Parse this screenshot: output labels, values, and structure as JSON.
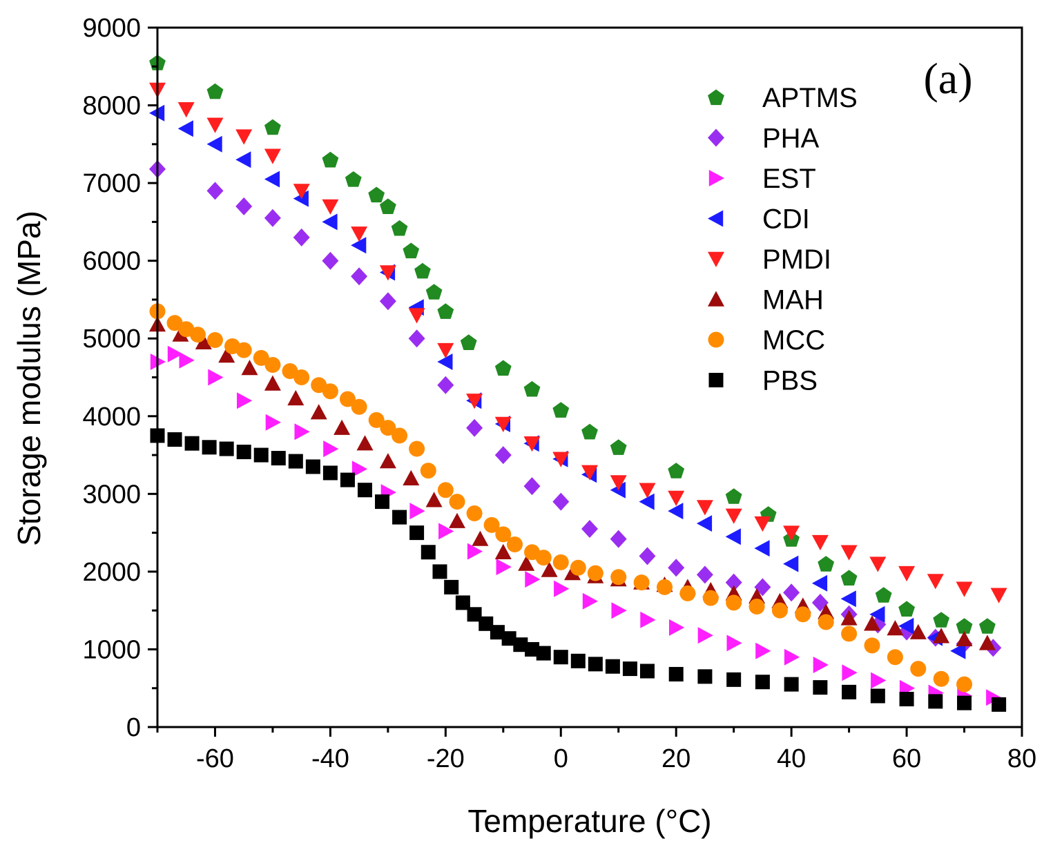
{
  "chart_data": {
    "type": "scatter",
    "panel_label": "(a)",
    "xlabel": "Temperature (°C)",
    "ylabel": "Storage modulus (MPa)",
    "xlim": [
      -70,
      80
    ],
    "ylim": [
      0,
      9000
    ],
    "xticks": [
      -60,
      -40,
      -20,
      0,
      20,
      40,
      60,
      80
    ],
    "yticks": [
      0,
      1000,
      2000,
      3000,
      4000,
      5000,
      6000,
      7000,
      8000,
      9000
    ],
    "xtick_labels": [
      "-60",
      "-40",
      "-20",
      "0",
      "20",
      "40",
      "60",
      "80"
    ],
    "ytick_labels": [
      "0",
      "1000",
      "2000",
      "3000",
      "4000",
      "5000",
      "6000",
      "7000",
      "8000",
      "9000"
    ],
    "legend_position": "top-right",
    "grid": false,
    "series": [
      {
        "name": "APTMS",
        "marker": "pentagon",
        "color": "#218a21",
        "x": [
          -70,
          -60,
          -50,
          -40,
          -36,
          -32,
          -30,
          -28,
          -26,
          -24,
          -22,
          -20,
          -16,
          -10,
          -5,
          0,
          5,
          10,
          20,
          30,
          36,
          40,
          46,
          50,
          56,
          60,
          66,
          70,
          74
        ],
        "y": [
          8550,
          8180,
          7720,
          7300,
          7050,
          6850,
          6700,
          6420,
          6130,
          5870,
          5600,
          5350,
          4950,
          4620,
          4350,
          4080,
          3800,
          3600,
          3300,
          2970,
          2740,
          2420,
          2100,
          1920,
          1700,
          1520,
          1380,
          1300,
          1300
        ]
      },
      {
        "name": "PHA",
        "marker": "diamond",
        "color": "#9a2ef0",
        "x": [
          -70,
          -60,
          -55,
          -50,
          -45,
          -40,
          -35,
          -30,
          -25,
          -20,
          -15,
          -10,
          -5,
          0,
          5,
          10,
          15,
          20,
          25,
          30,
          35,
          40,
          45,
          50,
          55,
          60,
          65,
          70,
          75
        ],
        "y": [
          7180,
          6900,
          6700,
          6550,
          6300,
          6000,
          5800,
          5480,
          5000,
          4400,
          3850,
          3500,
          3100,
          2900,
          2550,
          2420,
          2200,
          2050,
          1960,
          1860,
          1800,
          1730,
          1600,
          1450,
          1320,
          1230,
          1150,
          1070,
          1020
        ]
      },
      {
        "name": "EST",
        "marker": "triangle-right",
        "color": "#ff1fff",
        "x": [
          -70,
          -67,
          -65,
          -60,
          -55,
          -50,
          -45,
          -40,
          -35,
          -30,
          -25,
          -20,
          -15,
          -10,
          -5,
          0,
          5,
          10,
          15,
          20,
          25,
          30,
          35,
          40,
          45,
          50,
          55,
          60,
          65,
          70,
          75
        ],
        "y": [
          4700,
          4800,
          4720,
          4500,
          4200,
          3920,
          3800,
          3580,
          3320,
          3020,
          2780,
          2520,
          2260,
          2060,
          1900,
          1780,
          1620,
          1500,
          1380,
          1280,
          1180,
          1080,
          980,
          900,
          800,
          700,
          600,
          500,
          440,
          400,
          380
        ]
      },
      {
        "name": "CDI",
        "marker": "triangle-left",
        "color": "#1c1cff",
        "x": [
          -70,
          -65,
          -60,
          -55,
          -50,
          -45,
          -40,
          -35,
          -30,
          -25,
          -20,
          -15,
          -10,
          -5,
          0,
          5,
          10,
          15,
          20,
          25,
          30,
          35,
          40,
          45,
          50,
          55,
          60,
          65,
          69
        ],
        "y": [
          7900,
          7700,
          7500,
          7300,
          7050,
          6800,
          6500,
          6200,
          5850,
          5400,
          4700,
          4200,
          3900,
          3650,
          3450,
          3250,
          3050,
          2900,
          2780,
          2620,
          2450,
          2300,
          2100,
          1850,
          1650,
          1450,
          1300,
          1150,
          980
        ]
      },
      {
        "name": "PMDI",
        "marker": "triangle-down",
        "color": "#ff1f1f",
        "x": [
          -70,
          -65,
          -60,
          -55,
          -50,
          -45,
          -40,
          -35,
          -30,
          -25,
          -20,
          -15,
          -10,
          -5,
          0,
          5,
          10,
          15,
          20,
          25,
          30,
          35,
          40,
          45,
          50,
          55,
          60,
          65,
          70,
          76
        ],
        "y": [
          8200,
          7950,
          7750,
          7600,
          7350,
          6900,
          6700,
          6350,
          5850,
          5300,
          4850,
          4200,
          3900,
          3650,
          3450,
          3280,
          3150,
          3050,
          2950,
          2830,
          2720,
          2620,
          2500,
          2380,
          2250,
          2100,
          1980,
          1880,
          1780,
          1700
        ]
      },
      {
        "name": "MAH",
        "marker": "triangle-up",
        "color": "#9c0c0c",
        "x": [
          -70,
          -66,
          -62,
          -58,
          -54,
          -50,
          -46,
          -42,
          -38,
          -34,
          -30,
          -26,
          -22,
          -18,
          -14,
          -10,
          -6,
          -2,
          2,
          6,
          10,
          14,
          18,
          22,
          26,
          30,
          34,
          38,
          42,
          46,
          50,
          54,
          58,
          62,
          66,
          70,
          74
        ],
        "y": [
          5180,
          5050,
          4950,
          4780,
          4620,
          4420,
          4230,
          4050,
          3850,
          3650,
          3420,
          3200,
          2920,
          2650,
          2420,
          2250,
          2100,
          2020,
          1980,
          1940,
          1900,
          1860,
          1830,
          1800,
          1760,
          1720,
          1680,
          1620,
          1560,
          1480,
          1400,
          1330,
          1270,
          1220,
          1170,
          1130,
          1080
        ]
      },
      {
        "name": "MCC",
        "marker": "circle",
        "color": "#ff8c00",
        "x": [
          -70,
          -67,
          -65,
          -63,
          -60,
          -57,
          -55,
          -52,
          -50,
          -47,
          -45,
          -42,
          -40,
          -37,
          -35,
          -32,
          -30,
          -28,
          -25,
          -23,
          -20,
          -18,
          -15,
          -12,
          -10,
          -8,
          -5,
          -3,
          0,
          3,
          6,
          10,
          14,
          18,
          22,
          26,
          30,
          34,
          38,
          42,
          46,
          50,
          54,
          58,
          62,
          66,
          70
        ],
        "y": [
          5350,
          5200,
          5120,
          5050,
          4980,
          4900,
          4850,
          4750,
          4660,
          4580,
          4500,
          4400,
          4320,
          4220,
          4120,
          3950,
          3850,
          3750,
          3580,
          3300,
          3050,
          2900,
          2750,
          2600,
          2480,
          2350,
          2250,
          2180,
          2120,
          2050,
          1980,
          1930,
          1860,
          1800,
          1720,
          1660,
          1600,
          1550,
          1500,
          1450,
          1350,
          1200,
          1050,
          900,
          750,
          620,
          550
        ]
      },
      {
        "name": "PBS",
        "marker": "square",
        "color": "#000000",
        "x": [
          -70,
          -67,
          -64,
          -61,
          -58,
          -55,
          -52,
          -49,
          -46,
          -43,
          -40,
          -37,
          -34,
          -31,
          -28,
          -25,
          -23,
          -21,
          -19,
          -17,
          -15,
          -13,
          -11,
          -9,
          -7,
          -5,
          -3,
          0,
          3,
          6,
          9,
          12,
          15,
          20,
          25,
          30,
          35,
          40,
          45,
          50,
          55,
          60,
          65,
          70,
          76
        ],
        "y": [
          3750,
          3700,
          3650,
          3600,
          3580,
          3540,
          3500,
          3460,
          3420,
          3350,
          3270,
          3180,
          3050,
          2900,
          2700,
          2500,
          2250,
          2000,
          1800,
          1600,
          1450,
          1330,
          1220,
          1140,
          1060,
          1000,
          950,
          900,
          850,
          810,
          780,
          750,
          720,
          680,
          650,
          610,
          580,
          550,
          510,
          450,
          400,
          360,
          330,
          310,
          290
        ]
      }
    ]
  }
}
